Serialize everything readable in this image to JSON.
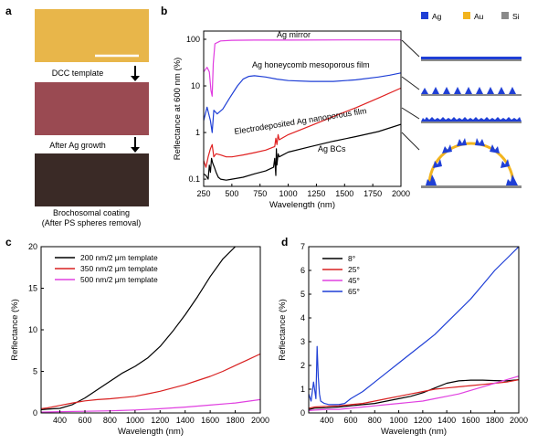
{
  "panel_a": {
    "letter": "a",
    "step1": "DCC template",
    "step2": "After Ag growth",
    "step3_line1": "Brochosomal coating",
    "step3_line2": "(After PS spheres removal)",
    "colors": {
      "photo1": "#e8b64a",
      "photo2": "#9a4a52",
      "photo3": "#3a2a26",
      "scalebar": "#ffffff"
    }
  },
  "panel_b_legend": {
    "ag": "Ag",
    "au": "Au",
    "si": "Si",
    "colors": {
      "ag": "#1f3fd6",
      "au": "#f2b41e",
      "si": "#8a8a8a"
    }
  },
  "chart_data": [
    {
      "panel": "b",
      "type": "line",
      "title": "",
      "xlabel": "Wavelength (nm)",
      "ylabel": "Reflectance at 600 nm (%)",
      "xlim": [
        250,
        2000
      ],
      "ylim": [
        0.07,
        150
      ],
      "yscale": "log",
      "xticks": [
        "250",
        "500",
        "750",
        "1000",
        "1250",
        "1500",
        "1750",
        "2000"
      ],
      "yticks": [
        "0.1",
        "1",
        "10",
        "100"
      ],
      "annotations": [
        "Ag mirror",
        "Ag honeycomb mesoporous film",
        "Electrodeposited Ag nanoporous film",
        "Ag BCs"
      ],
      "series": [
        {
          "name": "Ag mirror",
          "color": "#e03ce0",
          "x": [
            250,
            280,
            300,
            315,
            325,
            335,
            350,
            400,
            500,
            700,
            1000,
            1500,
            2000
          ],
          "y": [
            20,
            25,
            20,
            8,
            6,
            30,
            80,
            92,
            95,
            96,
            96,
            97,
            97
          ]
        },
        {
          "name": "Ag honeycomb mesoporous film",
          "color": "#1f3fd6",
          "x": [
            250,
            280,
            310,
            325,
            340,
            370,
            420,
            480,
            550,
            600,
            650,
            700,
            800,
            900,
            1000,
            1200,
            1400,
            1600,
            1800,
            1900,
            2000
          ],
          "y": [
            1.8,
            3.5,
            1.8,
            1.0,
            3.0,
            2.5,
            3.2,
            5.5,
            10,
            14,
            16,
            16.5,
            15.5,
            14,
            13,
            12.5,
            12.5,
            13.5,
            15.5,
            17,
            19
          ]
        },
        {
          "name": "Electrodeposited Ag nanoporous film",
          "color": "#e02020",
          "x": [
            250,
            270,
            290,
            310,
            325,
            340,
            360,
            400,
            450,
            500,
            600,
            700,
            800,
            880,
            890,
            900,
            910,
            920,
            1000,
            1200,
            1400,
            1600,
            1800,
            2000
          ],
          "y": [
            0.25,
            0.18,
            0.3,
            0.45,
            0.55,
            0.3,
            0.35,
            0.33,
            0.3,
            0.3,
            0.33,
            0.37,
            0.42,
            0.5,
            0.75,
            0.55,
            0.9,
            0.7,
            0.9,
            1.4,
            2.2,
            3.4,
            5.5,
            9
          ]
        },
        {
          "name": "Ag BCs",
          "color": "#000000",
          "x": [
            250,
            270,
            290,
            300,
            310,
            320,
            330,
            345,
            360,
            380,
            400,
            450,
            500,
            600,
            700,
            800,
            870,
            880,
            890,
            895,
            900,
            910,
            920,
            1000,
            1200,
            1400,
            1600,
            1800,
            2000
          ],
          "y": [
            0.13,
            0.12,
            0.1,
            0.2,
            0.14,
            0.28,
            0.22,
            0.18,
            0.14,
            0.11,
            0.1,
            0.095,
            0.1,
            0.11,
            0.13,
            0.15,
            0.18,
            0.28,
            0.12,
            0.45,
            0.2,
            0.35,
            0.3,
            0.38,
            0.5,
            0.65,
            0.82,
            1.05,
            1.5
          ]
        }
      ]
    },
    {
      "panel": "c",
      "type": "line",
      "title": "",
      "xlabel": "Wavelength (nm)",
      "ylabel": "Reflectance (%)",
      "xlim": [
        250,
        2000
      ],
      "ylim": [
        0,
        20
      ],
      "xticks": [
        "400",
        "600",
        "800",
        "1000",
        "1200",
        "1400",
        "1600",
        "1800",
        "2000"
      ],
      "yticks": [
        "0",
        "5",
        "10",
        "15",
        "20"
      ],
      "legend": "top-left",
      "series": [
        {
          "name": "200 nm/2 μm template",
          "color": "#000000",
          "x": [
            250,
            300,
            350,
            400,
            500,
            600,
            700,
            800,
            900,
            1000,
            1100,
            1200,
            1300,
            1400,
            1500,
            1600,
            1700,
            1800
          ],
          "y": [
            0.4,
            0.45,
            0.5,
            0.55,
            1.0,
            1.8,
            2.8,
            3.8,
            4.8,
            5.6,
            6.6,
            8.0,
            9.8,
            11.8,
            14.0,
            16.4,
            18.5,
            20.0
          ]
        },
        {
          "name": "350 nm/2 μm template",
          "color": "#d82020",
          "x": [
            250,
            300,
            400,
            500,
            600,
            700,
            800,
            900,
            1000,
            1100,
            1200,
            1300,
            1400,
            1500,
            1600,
            1700,
            1800,
            1900,
            2000
          ],
          "y": [
            0.5,
            0.6,
            0.9,
            1.2,
            1.45,
            1.6,
            1.7,
            1.85,
            2.0,
            2.3,
            2.6,
            3.0,
            3.4,
            3.9,
            4.4,
            5.0,
            5.7,
            6.4,
            7.1
          ]
        },
        {
          "name": "500 nm/2 μm template",
          "color": "#e040e0",
          "x": [
            250,
            400,
            600,
            800,
            1000,
            1200,
            1400,
            1600,
            1800,
            2000
          ],
          "y": [
            0.1,
            0.15,
            0.2,
            0.25,
            0.35,
            0.5,
            0.7,
            0.95,
            1.2,
            1.6
          ]
        }
      ]
    },
    {
      "panel": "d",
      "type": "line",
      "title": "",
      "xlabel": "Wavelength (nm)",
      "ylabel": "Reflectance (%)",
      "xlim": [
        250,
        2000
      ],
      "ylim": [
        0,
        7
      ],
      "xticks": [
        "400",
        "600",
        "800",
        "1000",
        "1200",
        "1400",
        "1600",
        "1800",
        "2000"
      ],
      "yticks": [
        "0",
        "1",
        "2",
        "3",
        "4",
        "5",
        "6",
        "7"
      ],
      "legend": "top-left",
      "series": [
        {
          "name": "8°",
          "color": "#000000",
          "x": [
            250,
            300,
            400,
            500,
            600,
            700,
            800,
            900,
            1000,
            1100,
            1200,
            1300,
            1400,
            1500,
            1600,
            1700,
            1800,
            1900,
            2000
          ],
          "y": [
            0.15,
            0.2,
            0.22,
            0.25,
            0.3,
            0.35,
            0.4,
            0.5,
            0.6,
            0.7,
            0.85,
            1.05,
            1.25,
            1.35,
            1.38,
            1.38,
            1.36,
            1.35,
            1.4
          ]
        },
        {
          "name": "25°",
          "color": "#d82020",
          "x": [
            250,
            300,
            400,
            500,
            600,
            700,
            800,
            900,
            1000,
            1100,
            1200,
            1300,
            1400,
            1500,
            1600,
            1700,
            1800,
            1900,
            2000
          ],
          "y": [
            0.2,
            0.25,
            0.28,
            0.3,
            0.35,
            0.4,
            0.5,
            0.6,
            0.7,
            0.8,
            0.9,
            1.0,
            1.05,
            1.1,
            1.15,
            1.2,
            1.25,
            1.3,
            1.4
          ]
        },
        {
          "name": "45°",
          "color": "#e040e0",
          "x": [
            250,
            300,
            400,
            500,
            600,
            700,
            800,
            900,
            1000,
            1100,
            1200,
            1300,
            1400,
            1500,
            1600,
            1700,
            1800,
            1900,
            2000
          ],
          "y": [
            0.1,
            0.12,
            0.15,
            0.15,
            0.2,
            0.25,
            0.3,
            0.35,
            0.4,
            0.45,
            0.5,
            0.6,
            0.7,
            0.8,
            0.95,
            1.1,
            1.25,
            1.4,
            1.55
          ]
        },
        {
          "name": "65°",
          "color": "#1f3fd6",
          "x": [
            250,
            270,
            290,
            310,
            320,
            330,
            340,
            350,
            380,
            420,
            500,
            550,
            600,
            700,
            800,
            900,
            1000,
            1100,
            1200,
            1300,
            1400,
            1500,
            1600,
            1700,
            1800,
            1900,
            2000
          ],
          "y": [
            0.8,
            0.5,
            1.3,
            0.6,
            2.8,
            1.5,
            0.8,
            0.5,
            0.4,
            0.35,
            0.35,
            0.4,
            0.6,
            0.9,
            1.3,
            1.7,
            2.1,
            2.5,
            2.9,
            3.3,
            3.8,
            4.3,
            4.8,
            5.4,
            6.0,
            6.5,
            7.0
          ]
        }
      ]
    }
  ]
}
